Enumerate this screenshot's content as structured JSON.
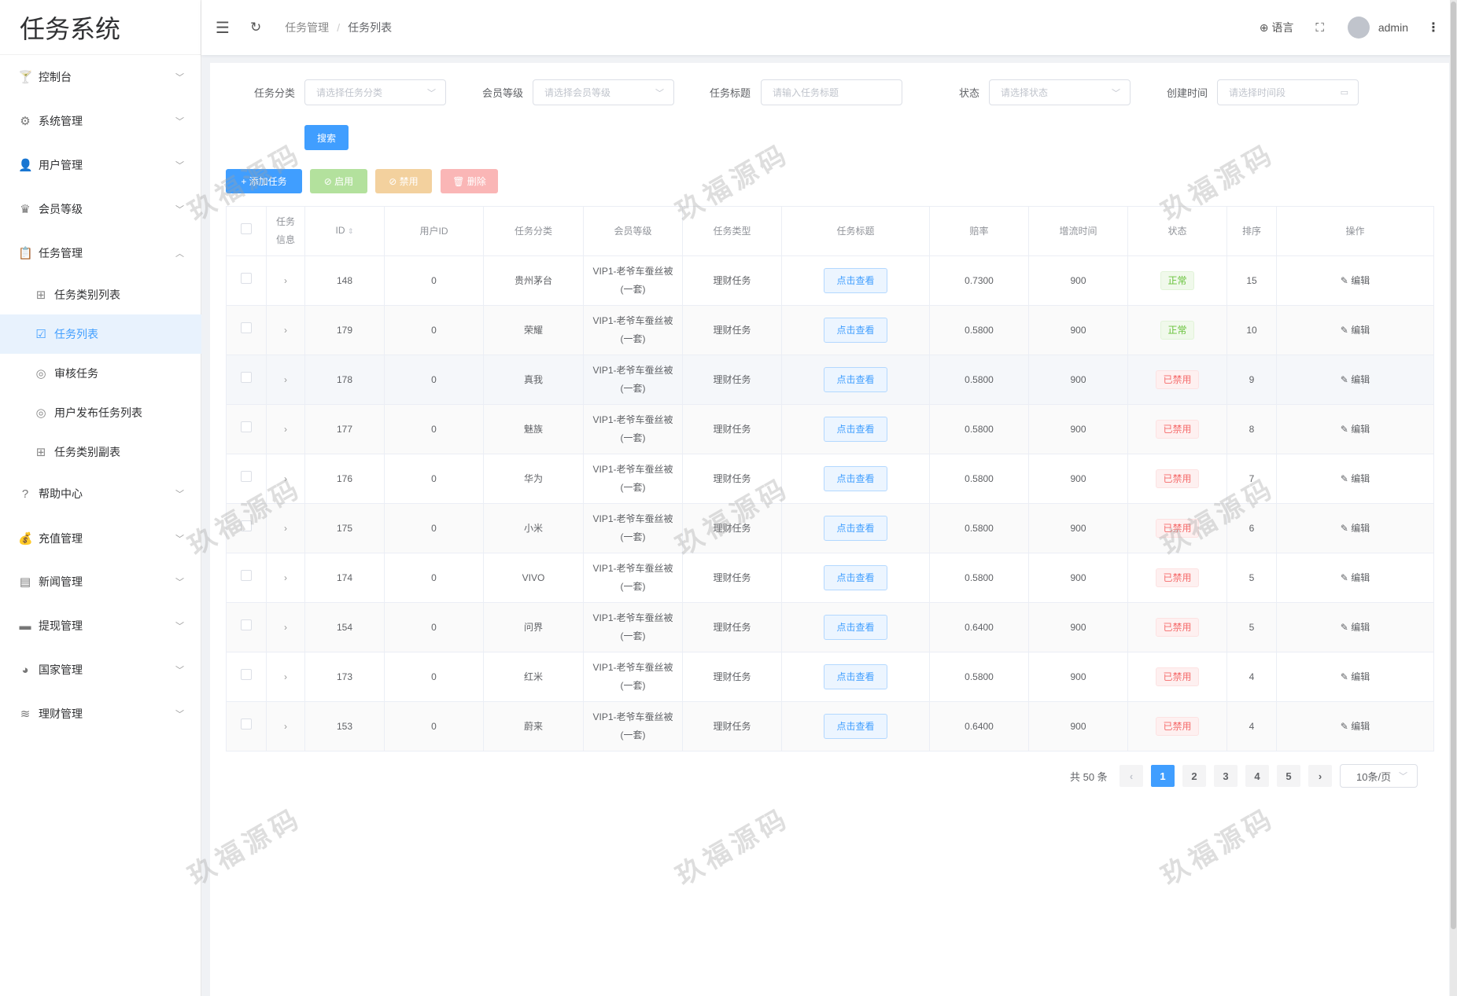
{
  "app": {
    "title": "任务系统"
  },
  "header": {
    "breadcrumb": [
      "任务管理",
      "任务列表"
    ],
    "language": "语言",
    "user": "admin"
  },
  "sidebar": {
    "items": [
      {
        "label": "控制台",
        "icon": "cocktail-icon"
      },
      {
        "label": "系统管理",
        "icon": "gear-icon"
      },
      {
        "label": "用户管理",
        "icon": "user-icon"
      },
      {
        "label": "会员等级",
        "icon": "crown-icon"
      },
      {
        "label": "任务管理",
        "icon": "clipboard-icon",
        "expanded": true
      },
      {
        "label": "帮助中心",
        "icon": "question-icon"
      },
      {
        "label": "充值管理",
        "icon": "money-bag-icon"
      },
      {
        "label": "新闻管理",
        "icon": "news-icon"
      },
      {
        "label": "提现管理",
        "icon": "wallet-icon"
      },
      {
        "label": "国家管理",
        "icon": "globe-icon"
      },
      {
        "label": "理财管理",
        "icon": "database-icon"
      }
    ],
    "subitems": [
      {
        "label": "任务类别列表",
        "icon": "grid-icon"
      },
      {
        "label": "任务列表",
        "icon": "clipboard-check-icon",
        "active": true
      },
      {
        "label": "审核任务",
        "icon": "check-circle-icon"
      },
      {
        "label": "用户发布任务列表",
        "icon": "check-circle-icon"
      },
      {
        "label": "任务类别副表",
        "icon": "grid-icon"
      }
    ]
  },
  "filters": {
    "category": {
      "label": "任务分类",
      "placeholder": "请选择任务分类"
    },
    "level": {
      "label": "会员等级",
      "placeholder": "请选择会员等级"
    },
    "title": {
      "label": "任务标题",
      "placeholder": "请输入任务标题"
    },
    "status": {
      "label": "状态",
      "placeholder": "请选择状态"
    },
    "created": {
      "label": "创建时间",
      "placeholder": "请选择时间段"
    },
    "search": "搜索"
  },
  "actions": {
    "add": "+ 添加任务",
    "enable": "⊘ 启用",
    "disable": "⊘ 禁用",
    "delete": "删除"
  },
  "table": {
    "headers": [
      "",
      "任务信息",
      "ID",
      "用户ID",
      "任务分类",
      "会员等级",
      "任务类型",
      "任务标题",
      "赔率",
      "增流时间",
      "状态",
      "排序",
      "操作"
    ],
    "view_label": "点击查看",
    "edit_label": "编辑",
    "rows": [
      {
        "id": "148",
        "user_id": "0",
        "category": "贵州茅台",
        "level": "VIP1-老爷车蚕丝被(一套)",
        "type": "理财任务",
        "rate": "0.7300",
        "time": "900",
        "status": "正常",
        "sort": "15"
      },
      {
        "id": "179",
        "user_id": "0",
        "category": "荣耀",
        "level": "VIP1-老爷车蚕丝被(一套)",
        "type": "理财任务",
        "rate": "0.5800",
        "time": "900",
        "status": "正常",
        "sort": "10"
      },
      {
        "id": "178",
        "user_id": "0",
        "category": "真我",
        "level": "VIP1-老爷车蚕丝被(一套)",
        "type": "理财任务",
        "rate": "0.5800",
        "time": "900",
        "status": "已禁用",
        "sort": "9"
      },
      {
        "id": "177",
        "user_id": "0",
        "category": "魅族",
        "level": "VIP1-老爷车蚕丝被(一套)",
        "type": "理财任务",
        "rate": "0.5800",
        "time": "900",
        "status": "已禁用",
        "sort": "8"
      },
      {
        "id": "176",
        "user_id": "0",
        "category": "华为",
        "level": "VIP1-老爷车蚕丝被(一套)",
        "type": "理财任务",
        "rate": "0.5800",
        "time": "900",
        "status": "已禁用",
        "sort": "7"
      },
      {
        "id": "175",
        "user_id": "0",
        "category": "小米",
        "level": "VIP1-老爷车蚕丝被(一套)",
        "type": "理财任务",
        "rate": "0.5800",
        "time": "900",
        "status": "已禁用",
        "sort": "6"
      },
      {
        "id": "174",
        "user_id": "0",
        "category": "VIVO",
        "level": "VIP1-老爷车蚕丝被(一套)",
        "type": "理财任务",
        "rate": "0.5800",
        "time": "900",
        "status": "已禁用",
        "sort": "5"
      },
      {
        "id": "154",
        "user_id": "0",
        "category": "问界",
        "level": "VIP1-老爷车蚕丝被(一套)",
        "type": "理财任务",
        "rate": "0.6400",
        "time": "900",
        "status": "已禁用",
        "sort": "5"
      },
      {
        "id": "173",
        "user_id": "0",
        "category": "红米",
        "level": "VIP1-老爷车蚕丝被(一套)",
        "type": "理财任务",
        "rate": "0.5800",
        "time": "900",
        "status": "已禁用",
        "sort": "4"
      },
      {
        "id": "153",
        "user_id": "0",
        "category": "蔚来",
        "level": "VIP1-老爷车蚕丝被(一套)",
        "type": "理财任务",
        "rate": "0.6400",
        "time": "900",
        "status": "已禁用",
        "sort": "4"
      }
    ]
  },
  "pagination": {
    "total": "共 50 条",
    "pages": [
      "1",
      "2",
      "3",
      "4",
      "5"
    ],
    "current": "1",
    "page_size": "10条/页"
  },
  "watermark": "玖福源码",
  "colors": {
    "primary": "#409eff",
    "success": "#67c23a",
    "danger": "#f56c6c",
    "warning": "#e6a23c"
  }
}
